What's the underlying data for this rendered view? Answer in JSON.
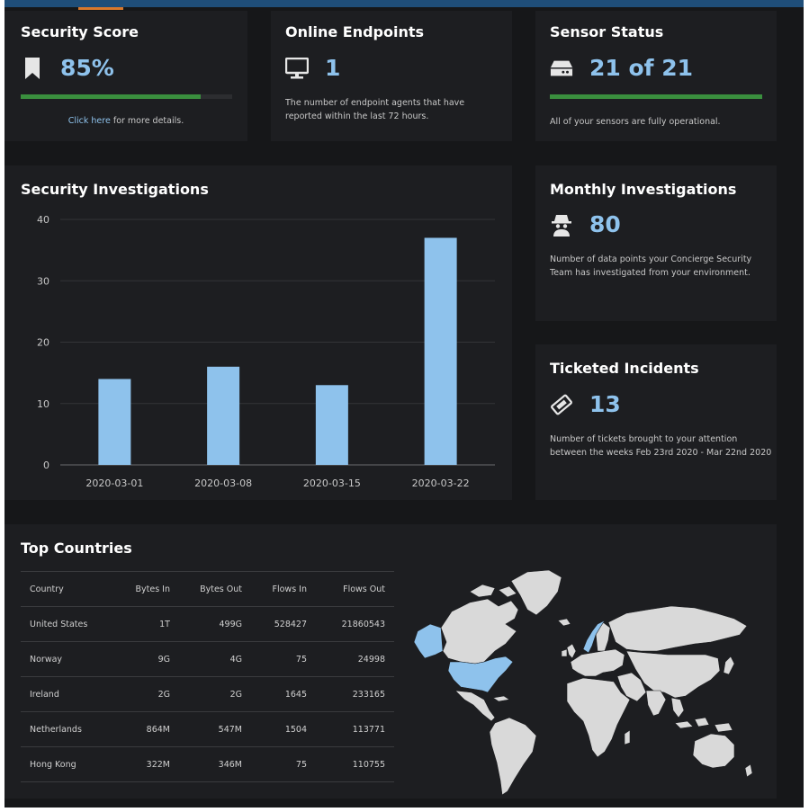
{
  "colors": {
    "accent": "#8ec2ec",
    "bar": "#8ec2ec",
    "progress": "#3a8f3e",
    "header": "#1f4e79",
    "tab_accent": "#d9782c"
  },
  "security_score": {
    "title": "Security Score",
    "icon": "bookmark-icon",
    "value": "85%",
    "progress": 0.85,
    "link_text": "Click here",
    "link_suffix": " for more details."
  },
  "online_endpoints": {
    "title": "Online Endpoints",
    "icon": "monitor-icon",
    "value": "1",
    "description": "The number of endpoint agents that have reported within the last 72 hours."
  },
  "sensor_status": {
    "title": "Sensor Status",
    "icon": "hard-drive-icon",
    "value": "21 of 21",
    "progress": 1.0,
    "description": "All of your sensors are fully operational."
  },
  "security_investigations": {
    "title": "Security Investigations"
  },
  "monthly_investigations": {
    "title": "Monthly Investigations",
    "icon": "spy-icon",
    "value": "80",
    "description": "Number of data points your Concierge Security Team has investigated from your environment."
  },
  "ticketed_incidents": {
    "title": "Ticketed Incidents",
    "icon": "ticket-icon",
    "value": "13",
    "description": "Number of tickets brought to your attention between the weeks Feb 23rd 2020 - Mar 22nd 2020"
  },
  "top_countries": {
    "title": "Top Countries",
    "columns": [
      "Country",
      "Bytes In",
      "Bytes Out",
      "Flows In",
      "Flows Out"
    ],
    "rows": [
      [
        "United States",
        "1T",
        "499G",
        "528427",
        "21860543"
      ],
      [
        "Norway",
        "9G",
        "4G",
        "75",
        "24998"
      ],
      [
        "Ireland",
        "2G",
        "2G",
        "1645",
        "233165"
      ],
      [
        "Netherlands",
        "864M",
        "547M",
        "1504",
        "113771"
      ],
      [
        "Hong Kong",
        "322M",
        "346M",
        "75",
        "110755"
      ]
    ],
    "highlighted_regions": [
      "United States",
      "Alaska",
      "Norway"
    ]
  },
  "chart_data": {
    "type": "bar",
    "categories": [
      "2020-03-01",
      "2020-03-08",
      "2020-03-15",
      "2020-03-22"
    ],
    "values": [
      14,
      16,
      13,
      37
    ],
    "ylim": [
      0,
      40
    ],
    "yticks": [
      0,
      10,
      20,
      30,
      40
    ],
    "grid": true,
    "xlabel": "",
    "ylabel": ""
  }
}
